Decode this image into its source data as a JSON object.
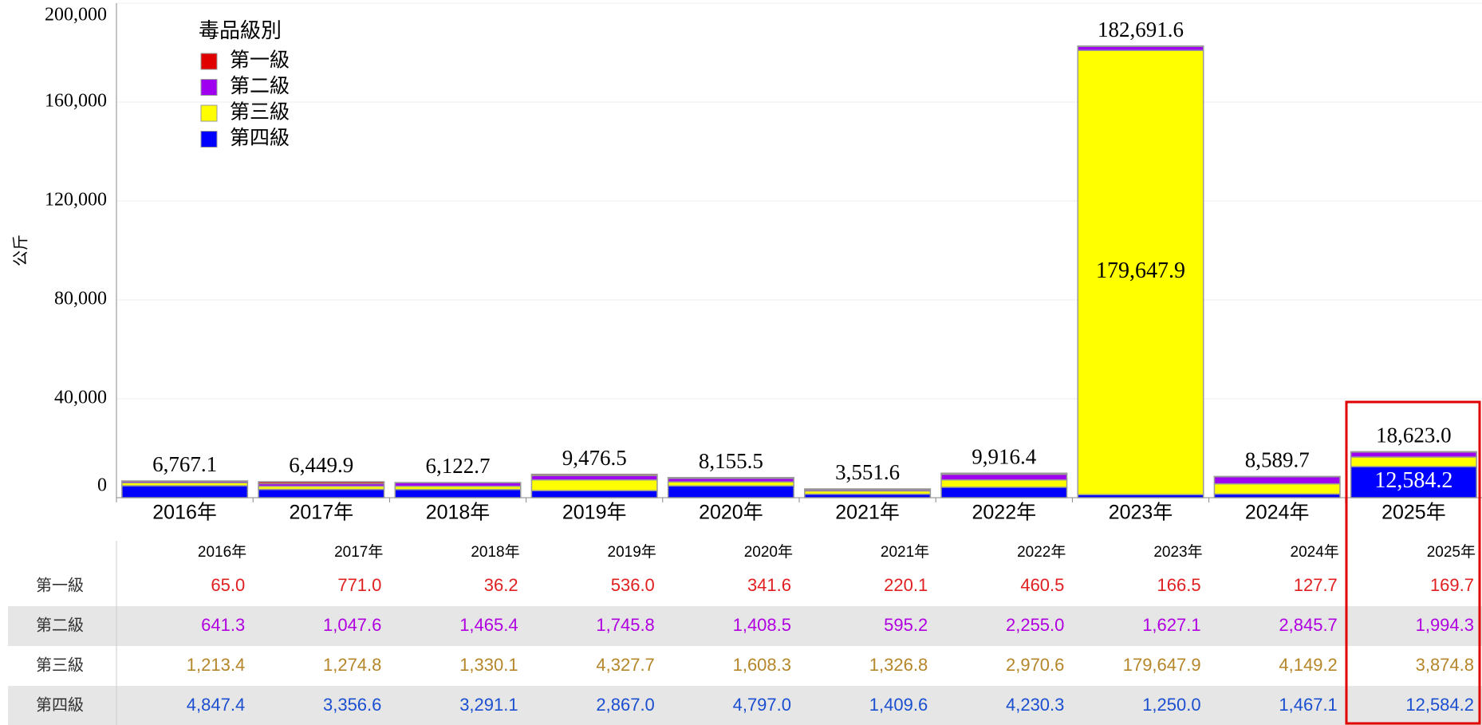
{
  "chart_data": {
    "type": "bar",
    "stacked": true,
    "legend_title": "毒品級別",
    "ylabel": "公斤",
    "categories": [
      "2016年",
      "2017年",
      "2018年",
      "2019年",
      "2020年",
      "2021年",
      "2022年",
      "2023年",
      "2024年",
      "2025年"
    ],
    "series": [
      {
        "name": "第一級",
        "color": "#e00000",
        "label_color": "#e02020",
        "values": [
          65.0,
          771.0,
          36.2,
          536.0,
          341.6,
          220.1,
          460.5,
          166.5,
          127.7,
          169.7
        ],
        "value_labels": [
          "65.0",
          "771.0",
          "36.2",
          "536.0",
          "341.6",
          "220.1",
          "460.5",
          "166.5",
          "127.7",
          "169.7"
        ]
      },
      {
        "name": "第二級",
        "color": "#a000f0",
        "label_color": "#b000e0",
        "values": [
          641.3,
          1047.6,
          1465.4,
          1745.8,
          1408.5,
          595.2,
          2255.0,
          1627.1,
          2845.7,
          1994.3
        ],
        "value_labels": [
          "641.3",
          "1,047.6",
          "1,465.4",
          "1,745.8",
          "1,408.5",
          "595.2",
          "2,255.0",
          "1,627.1",
          "2,845.7",
          "1,994.3"
        ]
      },
      {
        "name": "第三級",
        "color": "#ffff00",
        "label_color": "#b5862a",
        "values": [
          1213.4,
          1274.8,
          1330.1,
          4327.7,
          1608.3,
          1326.8,
          2970.6,
          179647.9,
          4149.2,
          3874.8
        ],
        "value_labels": [
          "1,213.4",
          "1,274.8",
          "1,330.1",
          "4,327.7",
          "1,608.3",
          "1,326.8",
          "2,970.6",
          "179,647.9",
          "4,149.2",
          "3,874.8"
        ]
      },
      {
        "name": "第四級",
        "color": "#0000ff",
        "label_color": "#1a4fd0",
        "values": [
          4847.4,
          3356.6,
          3291.1,
          2867.0,
          4797.0,
          1409.6,
          4230.3,
          1250.0,
          1467.1,
          12584.2
        ],
        "value_labels": [
          "4,847.4",
          "3,356.6",
          "3,291.1",
          "2,867.0",
          "4,797.0",
          "1,409.6",
          "4,230.3",
          "1,250.0",
          "1,467.1",
          "12,584.2"
        ]
      }
    ],
    "totals": [
      6767.1,
      6449.9,
      6122.7,
      9476.5,
      8155.5,
      3551.6,
      9916.4,
      182691.6,
      8589.7,
      18623.0
    ],
    "total_labels": [
      "6,767.1",
      "6,449.9",
      "6,122.7",
      "9,476.5",
      "8,155.5",
      "3,551.6",
      "9,916.4",
      "182,691.6",
      "8,589.7",
      "18,623.0"
    ],
    "ylim": [
      0,
      200000
    ],
    "yticks": [
      0,
      {
        "value": 40000,
        "label": "40,000"
      },
      {
        "value": 80000,
        "label": "80,000"
      },
      {
        "value": 120000,
        "label": "120,000"
      },
      {
        "value": 160000,
        "label": "160,000"
      },
      {
        "value": 200000,
        "label": "200,000"
      }
    ],
    "grid": true
  }
}
